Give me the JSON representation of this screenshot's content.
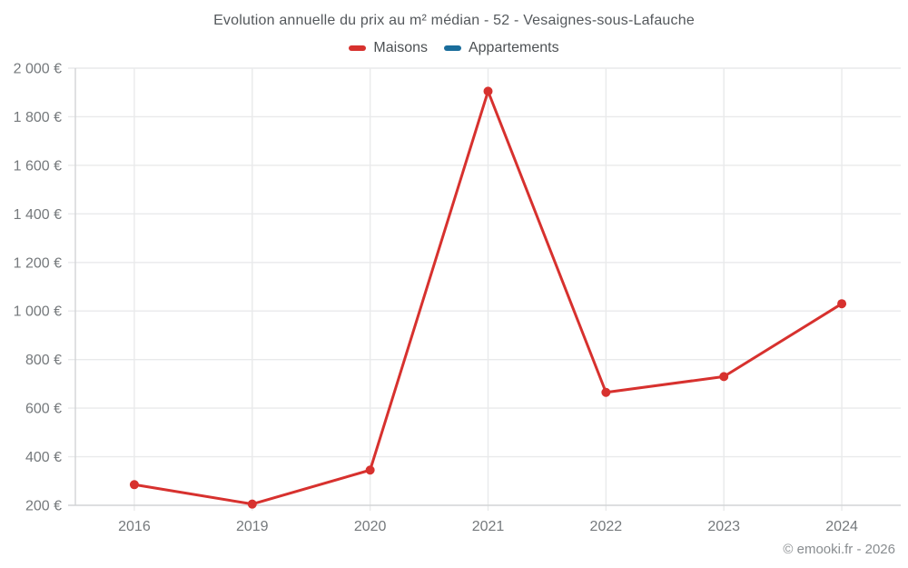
{
  "chart_data": {
    "type": "line",
    "title": "Evolution annuelle du prix au m² médian - 52 - Vesaignes-sous-Lafauche",
    "x_categories": [
      "2016",
      "2019",
      "2020",
      "2021",
      "2022",
      "2023",
      "2024"
    ],
    "series": [
      {
        "name": "Maisons",
        "color": "#d7312e",
        "values": [
          285,
          205,
          345,
          1905,
          665,
          730,
          1030
        ]
      },
      {
        "name": "Appartements",
        "color": "#1a6d9b",
        "values": []
      }
    ],
    "ylim": [
      200,
      2000
    ],
    "y_ticks": [
      200,
      400,
      600,
      800,
      1000,
      1200,
      1400,
      1600,
      1800,
      2000
    ],
    "y_tick_labels": [
      "200 €",
      "400 €",
      "600 €",
      "800 €",
      "1 000 €",
      "1 200 €",
      "1 400 €",
      "1 600 €",
      "1 800 €",
      "2 000 €"
    ],
    "grid": true,
    "legend_position": "top",
    "colors": {
      "grid": "#e9eaeb",
      "axis": "#d2d4d6",
      "tick_label": "#75797c"
    }
  },
  "legend": {
    "items": [
      {
        "label": "Maisons"
      },
      {
        "label": "Appartements"
      }
    ]
  },
  "footer": {
    "copyright": "© emooki.fr - 2026"
  }
}
